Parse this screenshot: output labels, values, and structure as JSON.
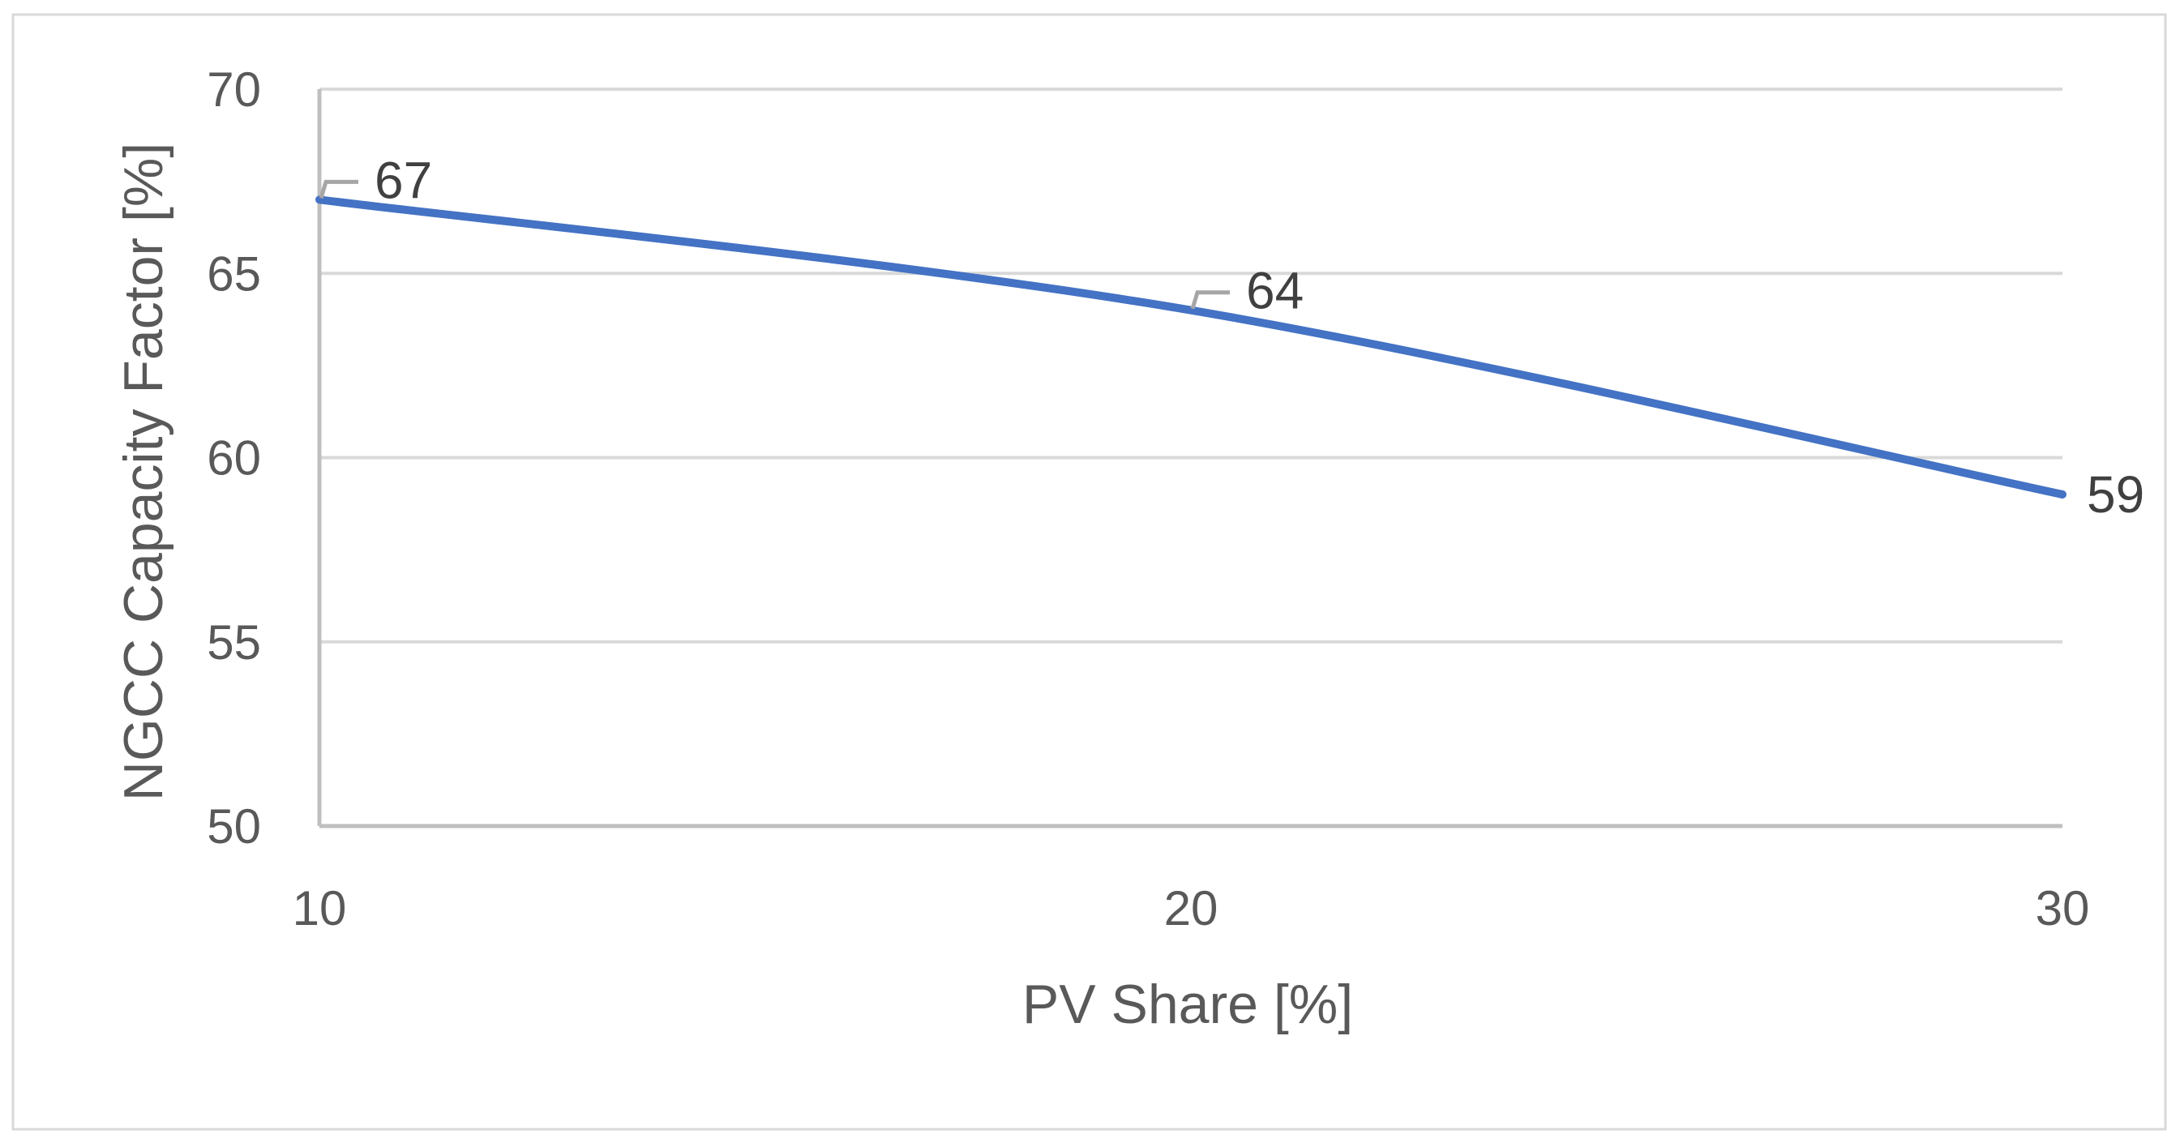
{
  "chart_data": {
    "type": "line",
    "title": "",
    "xlabel": "PV Share [%]",
    "ylabel": "NGCC Capacity Factor [%]",
    "x": [
      10,
      20,
      30
    ],
    "series": [
      {
        "name": "NGCC Capacity Factor",
        "values": [
          67,
          64,
          59
        ],
        "labels": [
          "67",
          "64",
          "59"
        ],
        "color": "#4472C4"
      }
    ],
    "xlim": [
      10,
      30
    ],
    "ylim": [
      50,
      70
    ],
    "xticks": [
      10,
      20,
      30
    ],
    "yticks": [
      50,
      55,
      60,
      65,
      70
    ],
    "xtick_labels": [
      "10",
      "20",
      "30"
    ],
    "ytick_labels": [
      "50",
      "55",
      "60",
      "65",
      "70"
    ],
    "grid": true,
    "legend": "none",
    "smooth": true
  },
  "colors": {
    "line": "#4472C4",
    "grid": "#D9D9D9",
    "axis": "#BFBFBF",
    "text": "#595959",
    "label_text": "#404040",
    "leader": "#A6A6A6",
    "frame": "#D9D9D9"
  }
}
